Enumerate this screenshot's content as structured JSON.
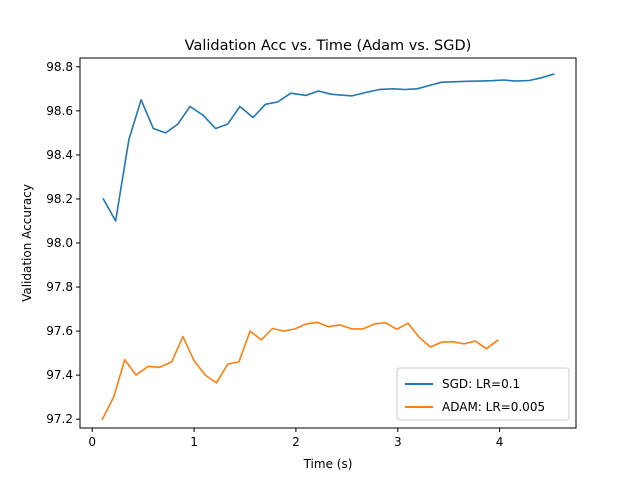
{
  "chart_data": {
    "type": "line",
    "title": "Validation Acc vs. Time (Adam vs. SGD)",
    "xlabel": "Time (s)",
    "ylabel": "Validation Accuracy",
    "xlim": [
      -0.12,
      4.75
    ],
    "ylim": [
      97.16,
      98.84
    ],
    "xticks": [
      0,
      1,
      2,
      3,
      4
    ],
    "yticks": [
      97.2,
      97.4,
      97.6,
      97.8,
      98.0,
      98.2,
      98.4,
      98.6,
      98.8
    ],
    "grid": false,
    "legend_position": "lower-right",
    "series": [
      {
        "name": "SGD: LR=0.1",
        "color": "#1f77b4",
        "x": [
          0.11,
          0.23,
          0.36,
          0.48,
          0.6,
          0.72,
          0.84,
          0.96,
          1.09,
          1.21,
          1.33,
          1.45,
          1.58,
          1.7,
          1.82,
          1.95,
          2.1,
          2.22,
          2.35,
          2.55,
          2.7,
          2.82,
          2.95,
          3.07,
          3.19,
          3.31,
          3.43,
          3.55,
          3.67,
          3.8,
          3.92,
          4.04,
          4.16,
          4.29,
          4.41,
          4.53
        ],
        "y": [
          98.2,
          98.1,
          98.47,
          98.65,
          98.52,
          98.5,
          98.54,
          98.62,
          98.58,
          98.52,
          98.54,
          98.62,
          98.57,
          98.63,
          98.64,
          98.68,
          98.67,
          98.69,
          98.675,
          98.668,
          98.685,
          98.697,
          98.7,
          98.697,
          98.7,
          98.715,
          98.73,
          98.732,
          98.734,
          98.735,
          98.737,
          98.74,
          98.735,
          98.738,
          98.75,
          98.767
        ]
      },
      {
        "name": "ADAM: LR=0.005",
        "color": "#ff7f0e",
        "x": [
          0.1,
          0.21,
          0.32,
          0.43,
          0.55,
          0.66,
          0.78,
          0.89,
          1.0,
          1.11,
          1.22,
          1.33,
          1.44,
          1.55,
          1.66,
          1.77,
          1.88,
          1.99,
          2.1,
          2.21,
          2.32,
          2.43,
          2.55,
          2.66,
          2.77,
          2.88,
          2.99,
          3.1,
          3.21,
          3.32,
          3.43,
          3.54,
          3.65,
          3.76,
          3.87,
          3.98
        ],
        "y": [
          97.2,
          97.3,
          97.47,
          97.4,
          97.44,
          97.435,
          97.46,
          97.575,
          97.465,
          97.4,
          97.365,
          97.45,
          97.46,
          97.6,
          97.56,
          97.612,
          97.6,
          97.61,
          97.632,
          97.64,
          97.62,
          97.628,
          97.61,
          97.61,
          97.632,
          97.638,
          97.608,
          97.636,
          97.572,
          97.528,
          97.55,
          97.552,
          97.542,
          97.555,
          97.52,
          97.558
        ]
      }
    ]
  }
}
